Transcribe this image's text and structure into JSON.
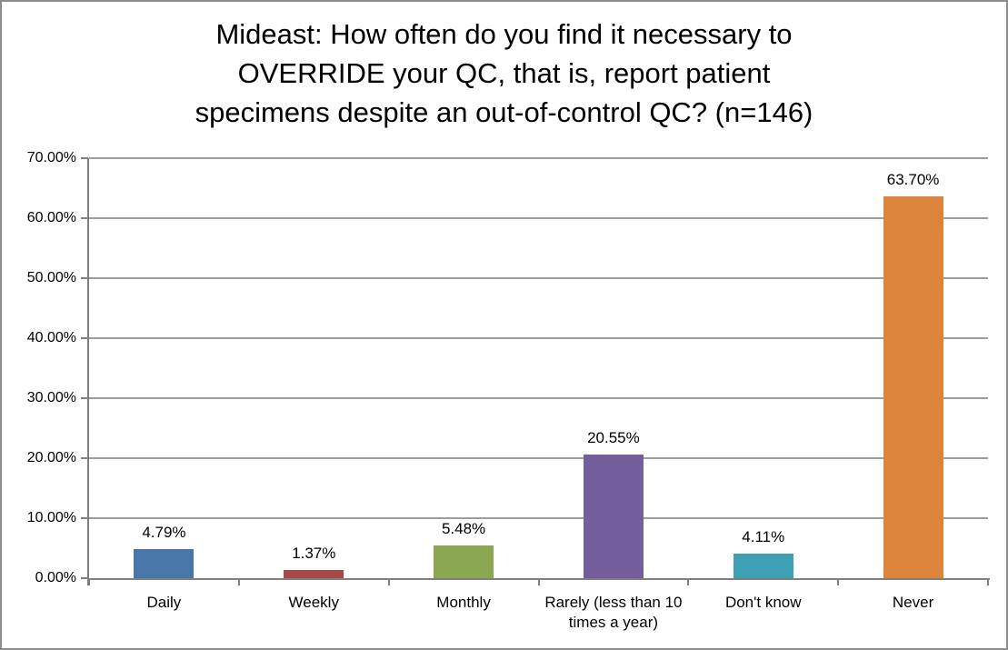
{
  "title_lines": [
    "Mideast: How often do you find it necessary to",
    "OVERRIDE your QC, that is, report patient",
    "specimens despite an out-of-control QC? (n=146)"
  ],
  "chart_data": {
    "type": "bar",
    "title": "Mideast: How often do you find it necessary to OVERRIDE your QC, that is, report patient specimens despite an out-of-control QC? (n=146)",
    "categories": [
      "Daily",
      "Weekly",
      "Monthly",
      "Rarely (less than 10 times a year)",
      "Don't know",
      "Never"
    ],
    "values": [
      4.79,
      1.37,
      5.48,
      20.55,
      4.11,
      63.7
    ],
    "data_labels": [
      "4.79%",
      "1.37%",
      "5.48%",
      "20.55%",
      "4.11%",
      "63.70%"
    ],
    "bar_colors": [
      "#4876A8",
      "#A94744",
      "#8CA751",
      "#745F9C",
      "#3FA0B4",
      "#DD843C"
    ],
    "xlabel": "",
    "ylabel": "",
    "ylim": [
      0,
      70
    ],
    "y_tick_labels": [
      "0.00%",
      "10.00%",
      "20.00%",
      "30.00%",
      "40.00%",
      "50.00%",
      "60.00%",
      "70.00%"
    ],
    "grid": "horizontal",
    "legend": "none"
  },
  "colors": {
    "axis": "#7f7f7f",
    "gridline": "#9d9d9d",
    "frame_border": "#8c8c8c",
    "background": "#ffffff",
    "text": "#000000"
  }
}
